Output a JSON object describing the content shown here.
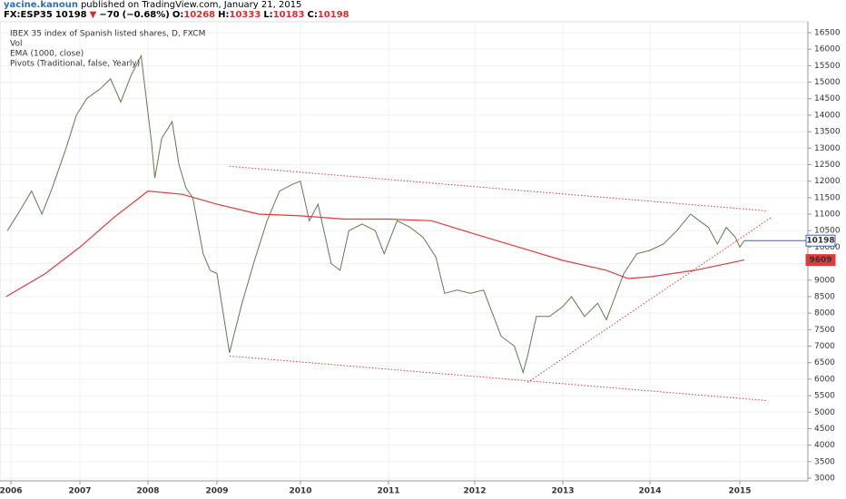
{
  "header": {
    "author": "yacine.kanoun",
    "published": "published on TradingView.com, January 21, 2015"
  },
  "quote": {
    "symbol": "FX:ESP35",
    "last": "10198",
    "arrow": "▼",
    "change": "−70",
    "change_pct": "(−0.68%)",
    "ohlc": [
      [
        "O:",
        "10268"
      ],
      [
        "H:",
        "10333"
      ],
      [
        "L:",
        "10183"
      ],
      [
        "C:",
        "10198"
      ]
    ]
  },
  "chart_data": {
    "type": "line",
    "legend": [
      "IBEX 35 index of Spanish listed shares, D, FXCM",
      "Vol",
      "EMA (1000, close)",
      "Pivots (Traditional, false, Yearly)"
    ],
    "xlim": [
      2005.93,
      2015.76
    ],
    "xticks": [
      2006,
      2007,
      2008,
      2009,
      2010,
      2011,
      2012,
      2013,
      2014,
      2015
    ],
    "ylim": [
      3000,
      16500
    ],
    "yticks": [
      3000,
      3500,
      4000,
      4500,
      5000,
      5500,
      6000,
      6500,
      7000,
      7500,
      8000,
      8500,
      9000,
      9500,
      10000,
      10500,
      11000,
      11500,
      12000,
      12500,
      13000,
      13500,
      14000,
      14500,
      15000,
      15500,
      16000,
      16500
    ],
    "grid": true,
    "series": [
      {
        "name": "IBEX 35",
        "color": "#5f7a4e",
        "x": [
          2005.95,
          2006.1,
          2006.3,
          2006.45,
          2006.6,
          2006.8,
          2006.95,
          2007.1,
          2007.3,
          2007.45,
          2007.6,
          2007.75,
          2007.9,
          2008.05,
          2008.1,
          2008.2,
          2008.35,
          2008.45,
          2008.55,
          2008.65,
          2008.8,
          2008.9,
          2009.0,
          2009.15,
          2009.3,
          2009.45,
          2009.6,
          2009.75,
          2009.9,
          2010.0,
          2010.1,
          2010.2,
          2010.35,
          2010.45,
          2010.55,
          2010.7,
          2010.85,
          2010.95,
          2011.1,
          2011.25,
          2011.4,
          2011.55,
          2011.65,
          2011.8,
          2011.95,
          2012.1,
          2012.3,
          2012.45,
          2012.55,
          2012.6,
          2012.7,
          2012.85,
          2013.0,
          2013.1,
          2013.25,
          2013.4,
          2013.5,
          2013.6,
          2013.7,
          2013.85,
          2014.0,
          2014.15,
          2014.3,
          2014.45,
          2014.55,
          2014.65,
          2014.75,
          2014.85,
          2014.95,
          2015.0,
          2015.05
        ],
        "values": [
          10500,
          11000,
          11700,
          11000,
          11800,
          13000,
          14000,
          14500,
          14800,
          15100,
          14400,
          15200,
          15800,
          13200,
          12100,
          13300,
          13800,
          12500,
          11800,
          11500,
          9800,
          9300,
          9200,
          6800,
          8300,
          9600,
          10800,
          11700,
          11900,
          12000,
          10800,
          11300,
          9500,
          9300,
          10500,
          10700,
          10500,
          9800,
          10800,
          10600,
          10300,
          9700,
          8600,
          8700,
          8600,
          8700,
          7300,
          7000,
          6200,
          6700,
          7900,
          7900,
          8200,
          8500,
          7900,
          8300,
          7800,
          8500,
          9200,
          9800,
          9900,
          10100,
          10500,
          11000,
          10800,
          10600,
          10100,
          10600,
          10300,
          10000,
          10198
        ]
      },
      {
        "name": "EMA (1000, close)",
        "color": "#e03b3b",
        "x": [
          2005.93,
          2006.5,
          2007.0,
          2007.5,
          2008.0,
          2008.5,
          2009.0,
          2009.5,
          2010.0,
          2010.5,
          2011.0,
          2011.5,
          2012.0,
          2012.5,
          2013.0,
          2013.5,
          2013.75,
          2014.0,
          2014.5,
          2015.05
        ],
        "values": [
          8500,
          9200,
          10000,
          10900,
          11700,
          11600,
          11300,
          11000,
          10950,
          10850,
          10850,
          10800,
          10400,
          10000,
          9600,
          9300,
          9050,
          9100,
          9300,
          9609
        ]
      }
    ],
    "trendlines": [
      {
        "x": [
          2009.15,
          2015.3
        ],
        "y": [
          12450,
          11100
        ]
      },
      {
        "x": [
          2009.15,
          2015.3
        ],
        "y": [
          6700,
          5350
        ]
      },
      {
        "x": [
          2012.6,
          2015.35
        ],
        "y": [
          5900,
          10900
        ]
      }
    ],
    "price_labels": [
      {
        "value": 10198,
        "color": "#3a5fcd"
      },
      {
        "value": 9609,
        "color": "#e03b3b"
      }
    ]
  }
}
